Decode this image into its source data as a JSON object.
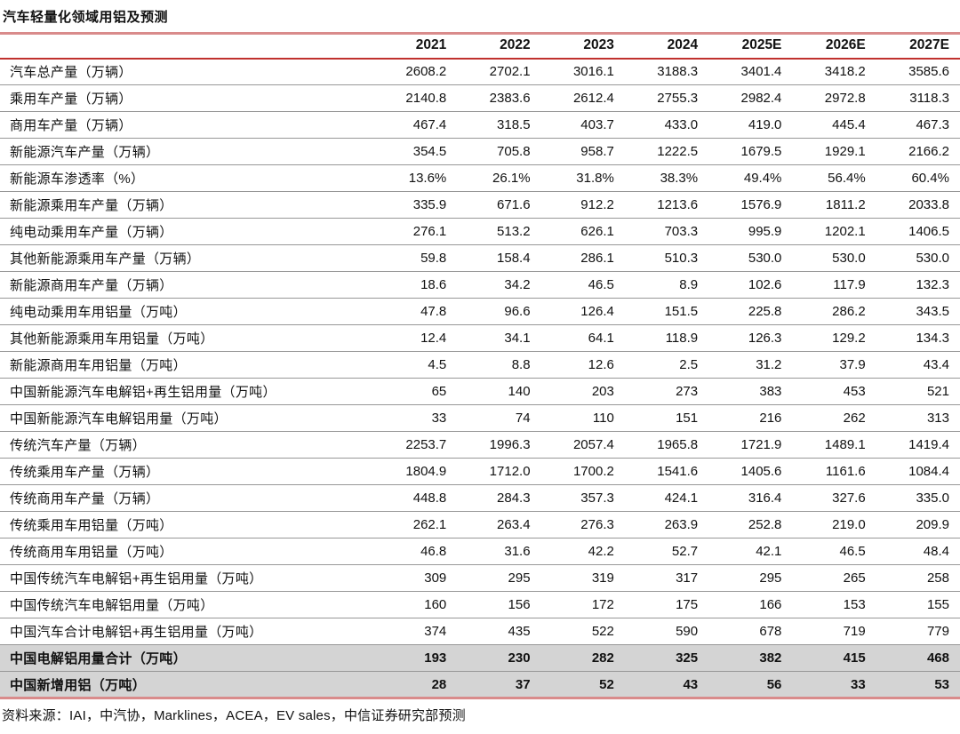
{
  "title": "汽车轻量化领域用铝及预测",
  "source": "资料来源：IAI，中汽协，Marklines，ACEA，EV sales，中信证券研究部预测",
  "colors": {
    "rule_pink": "#d98b8b",
    "rule_red": "#c0312e",
    "row_line": "#979797",
    "summary_bg": "#d4d4d4",
    "text": "#111111"
  },
  "chart_data": {
    "type": "table",
    "title": "汽车轻量化领域用铝及预测",
    "columns": [
      "",
      "2021",
      "2022",
      "2023",
      "2024",
      "2025E",
      "2026E",
      "2027E"
    ],
    "rows": [
      {
        "label": "汽车总产量（万辆）",
        "values": [
          "2608.2",
          "2702.1",
          "3016.1",
          "3188.3",
          "3401.4",
          "3418.2",
          "3585.6"
        ],
        "summary": false
      },
      {
        "label": "乘用车产量（万辆）",
        "values": [
          "2140.8",
          "2383.6",
          "2612.4",
          "2755.3",
          "2982.4",
          "2972.8",
          "3118.3"
        ],
        "summary": false
      },
      {
        "label": "商用车产量（万辆）",
        "values": [
          "467.4",
          "318.5",
          "403.7",
          "433.0",
          "419.0",
          "445.4",
          "467.3"
        ],
        "summary": false
      },
      {
        "label": "新能源汽车产量（万辆）",
        "values": [
          "354.5",
          "705.8",
          "958.7",
          "1222.5",
          "1679.5",
          "1929.1",
          "2166.2"
        ],
        "summary": false
      },
      {
        "label": "新能源车渗透率（%）",
        "values": [
          "13.6%",
          "26.1%",
          "31.8%",
          "38.3%",
          "49.4%",
          "56.4%",
          "60.4%"
        ],
        "summary": false
      },
      {
        "label": "新能源乘用车产量（万辆）",
        "values": [
          "335.9",
          "671.6",
          "912.2",
          "1213.6",
          "1576.9",
          "1811.2",
          "2033.8"
        ],
        "summary": false
      },
      {
        "label": "纯电动乘用车产量（万辆）",
        "values": [
          "276.1",
          "513.2",
          "626.1",
          "703.3",
          "995.9",
          "1202.1",
          "1406.5"
        ],
        "summary": false
      },
      {
        "label": "其他新能源乘用车产量（万辆）",
        "values": [
          "59.8",
          "158.4",
          "286.1",
          "510.3",
          "530.0",
          "530.0",
          "530.0"
        ],
        "summary": false
      },
      {
        "label": "新能源商用车产量（万辆）",
        "values": [
          "18.6",
          "34.2",
          "46.5",
          "8.9",
          "102.6",
          "117.9",
          "132.3"
        ],
        "summary": false
      },
      {
        "label": "纯电动乘用车用铝量（万吨）",
        "values": [
          "47.8",
          "96.6",
          "126.4",
          "151.5",
          "225.8",
          "286.2",
          "343.5"
        ],
        "summary": false
      },
      {
        "label": "其他新能源乘用车用铝量（万吨）",
        "values": [
          "12.4",
          "34.1",
          "64.1",
          "118.9",
          "126.3",
          "129.2",
          "134.3"
        ],
        "summary": false
      },
      {
        "label": "新能源商用车用铝量（万吨）",
        "values": [
          "4.5",
          "8.8",
          "12.6",
          "2.5",
          "31.2",
          "37.9",
          "43.4"
        ],
        "summary": false
      },
      {
        "label": "中国新能源汽车电解铝+再生铝用量（万吨）",
        "values": [
          "65",
          "140",
          "203",
          "273",
          "383",
          "453",
          "521"
        ],
        "summary": false
      },
      {
        "label": "中国新能源汽车电解铝用量（万吨）",
        "values": [
          "33",
          "74",
          "110",
          "151",
          "216",
          "262",
          "313"
        ],
        "summary": false
      },
      {
        "label": "传统汽车产量（万辆）",
        "values": [
          "2253.7",
          "1996.3",
          "2057.4",
          "1965.8",
          "1721.9",
          "1489.1",
          "1419.4"
        ],
        "summary": false
      },
      {
        "label": "传统乘用车产量（万辆）",
        "values": [
          "1804.9",
          "1712.0",
          "1700.2",
          "1541.6",
          "1405.6",
          "1161.6",
          "1084.4"
        ],
        "summary": false
      },
      {
        "label": "传统商用车产量（万辆）",
        "values": [
          "448.8",
          "284.3",
          "357.3",
          "424.1",
          "316.4",
          "327.6",
          "335.0"
        ],
        "summary": false
      },
      {
        "label": "传统乘用车用铝量（万吨）",
        "values": [
          "262.1",
          "263.4",
          "276.3",
          "263.9",
          "252.8",
          "219.0",
          "209.9"
        ],
        "summary": false
      },
      {
        "label": "传统商用车用铝量（万吨）",
        "values": [
          "46.8",
          "31.6",
          "42.2",
          "52.7",
          "42.1",
          "46.5",
          "48.4"
        ],
        "summary": false
      },
      {
        "label": "中国传统汽车电解铝+再生铝用量（万吨）",
        "values": [
          "309",
          "295",
          "319",
          "317",
          "295",
          "265",
          "258"
        ],
        "summary": false
      },
      {
        "label": "中国传统汽车电解铝用量（万吨）",
        "values": [
          "160",
          "156",
          "172",
          "175",
          "166",
          "153",
          "155"
        ],
        "summary": false
      },
      {
        "label": "中国汽车合计电解铝+再生铝用量（万吨）",
        "values": [
          "374",
          "435",
          "522",
          "590",
          "678",
          "719",
          "779"
        ],
        "summary": false
      },
      {
        "label": "中国电解铝用量合计（万吨）",
        "values": [
          "193",
          "230",
          "282",
          "325",
          "382",
          "415",
          "468"
        ],
        "summary": true
      },
      {
        "label": "中国新增用铝（万吨）",
        "values": [
          "28",
          "37",
          "52",
          "43",
          "56",
          "33",
          "53"
        ],
        "summary": true
      }
    ]
  }
}
